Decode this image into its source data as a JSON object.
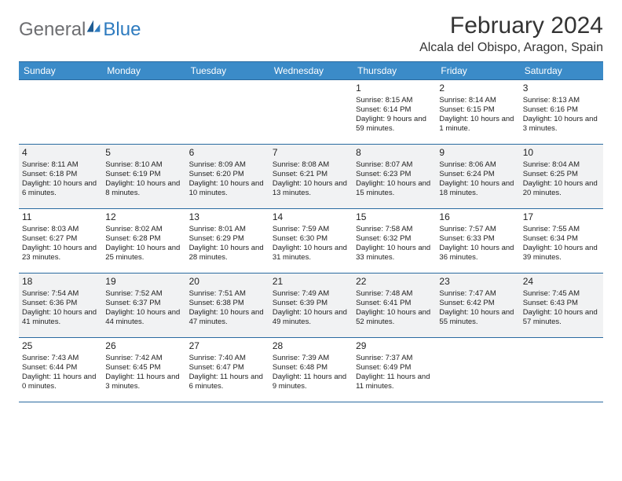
{
  "logo": {
    "word1": "General",
    "word2": "Blue"
  },
  "title": "February 2024",
  "location": "Alcala del Obispo, Aragon, Spain",
  "day_headers": [
    "Sunday",
    "Monday",
    "Tuesday",
    "Wednesday",
    "Thursday",
    "Friday",
    "Saturday"
  ],
  "colors": {
    "header_bg": "#3b8bc8",
    "header_border": "#2a6aa0",
    "alt_row_bg": "#f1f2f3",
    "logo_gray": "#6d6e71",
    "logo_blue": "#2e7bbf"
  },
  "weeks": [
    [
      null,
      null,
      null,
      null,
      {
        "d": "1",
        "sr": "Sunrise: 8:15 AM",
        "ss": "Sunset: 6:14 PM",
        "dl": "Daylight: 9 hours and 59 minutes."
      },
      {
        "d": "2",
        "sr": "Sunrise: 8:14 AM",
        "ss": "Sunset: 6:15 PM",
        "dl": "Daylight: 10 hours and 1 minute."
      },
      {
        "d": "3",
        "sr": "Sunrise: 8:13 AM",
        "ss": "Sunset: 6:16 PM",
        "dl": "Daylight: 10 hours and 3 minutes."
      }
    ],
    [
      {
        "d": "4",
        "sr": "Sunrise: 8:11 AM",
        "ss": "Sunset: 6:18 PM",
        "dl": "Daylight: 10 hours and 6 minutes."
      },
      {
        "d": "5",
        "sr": "Sunrise: 8:10 AM",
        "ss": "Sunset: 6:19 PM",
        "dl": "Daylight: 10 hours and 8 minutes."
      },
      {
        "d": "6",
        "sr": "Sunrise: 8:09 AM",
        "ss": "Sunset: 6:20 PM",
        "dl": "Daylight: 10 hours and 10 minutes."
      },
      {
        "d": "7",
        "sr": "Sunrise: 8:08 AM",
        "ss": "Sunset: 6:21 PM",
        "dl": "Daylight: 10 hours and 13 minutes."
      },
      {
        "d": "8",
        "sr": "Sunrise: 8:07 AM",
        "ss": "Sunset: 6:23 PM",
        "dl": "Daylight: 10 hours and 15 minutes."
      },
      {
        "d": "9",
        "sr": "Sunrise: 8:06 AM",
        "ss": "Sunset: 6:24 PM",
        "dl": "Daylight: 10 hours and 18 minutes."
      },
      {
        "d": "10",
        "sr": "Sunrise: 8:04 AM",
        "ss": "Sunset: 6:25 PM",
        "dl": "Daylight: 10 hours and 20 minutes."
      }
    ],
    [
      {
        "d": "11",
        "sr": "Sunrise: 8:03 AM",
        "ss": "Sunset: 6:27 PM",
        "dl": "Daylight: 10 hours and 23 minutes."
      },
      {
        "d": "12",
        "sr": "Sunrise: 8:02 AM",
        "ss": "Sunset: 6:28 PM",
        "dl": "Daylight: 10 hours and 25 minutes."
      },
      {
        "d": "13",
        "sr": "Sunrise: 8:01 AM",
        "ss": "Sunset: 6:29 PM",
        "dl": "Daylight: 10 hours and 28 minutes."
      },
      {
        "d": "14",
        "sr": "Sunrise: 7:59 AM",
        "ss": "Sunset: 6:30 PM",
        "dl": "Daylight: 10 hours and 31 minutes."
      },
      {
        "d": "15",
        "sr": "Sunrise: 7:58 AM",
        "ss": "Sunset: 6:32 PM",
        "dl": "Daylight: 10 hours and 33 minutes."
      },
      {
        "d": "16",
        "sr": "Sunrise: 7:57 AM",
        "ss": "Sunset: 6:33 PM",
        "dl": "Daylight: 10 hours and 36 minutes."
      },
      {
        "d": "17",
        "sr": "Sunrise: 7:55 AM",
        "ss": "Sunset: 6:34 PM",
        "dl": "Daylight: 10 hours and 39 minutes."
      }
    ],
    [
      {
        "d": "18",
        "sr": "Sunrise: 7:54 AM",
        "ss": "Sunset: 6:36 PM",
        "dl": "Daylight: 10 hours and 41 minutes."
      },
      {
        "d": "19",
        "sr": "Sunrise: 7:52 AM",
        "ss": "Sunset: 6:37 PM",
        "dl": "Daylight: 10 hours and 44 minutes."
      },
      {
        "d": "20",
        "sr": "Sunrise: 7:51 AM",
        "ss": "Sunset: 6:38 PM",
        "dl": "Daylight: 10 hours and 47 minutes."
      },
      {
        "d": "21",
        "sr": "Sunrise: 7:49 AM",
        "ss": "Sunset: 6:39 PM",
        "dl": "Daylight: 10 hours and 49 minutes."
      },
      {
        "d": "22",
        "sr": "Sunrise: 7:48 AM",
        "ss": "Sunset: 6:41 PM",
        "dl": "Daylight: 10 hours and 52 minutes."
      },
      {
        "d": "23",
        "sr": "Sunrise: 7:47 AM",
        "ss": "Sunset: 6:42 PM",
        "dl": "Daylight: 10 hours and 55 minutes."
      },
      {
        "d": "24",
        "sr": "Sunrise: 7:45 AM",
        "ss": "Sunset: 6:43 PM",
        "dl": "Daylight: 10 hours and 57 minutes."
      }
    ],
    [
      {
        "d": "25",
        "sr": "Sunrise: 7:43 AM",
        "ss": "Sunset: 6:44 PM",
        "dl": "Daylight: 11 hours and 0 minutes."
      },
      {
        "d": "26",
        "sr": "Sunrise: 7:42 AM",
        "ss": "Sunset: 6:45 PM",
        "dl": "Daylight: 11 hours and 3 minutes."
      },
      {
        "d": "27",
        "sr": "Sunrise: 7:40 AM",
        "ss": "Sunset: 6:47 PM",
        "dl": "Daylight: 11 hours and 6 minutes."
      },
      {
        "d": "28",
        "sr": "Sunrise: 7:39 AM",
        "ss": "Sunset: 6:48 PM",
        "dl": "Daylight: 11 hours and 9 minutes."
      },
      {
        "d": "29",
        "sr": "Sunrise: 7:37 AM",
        "ss": "Sunset: 6:49 PM",
        "dl": "Daylight: 11 hours and 11 minutes."
      },
      null,
      null
    ]
  ]
}
